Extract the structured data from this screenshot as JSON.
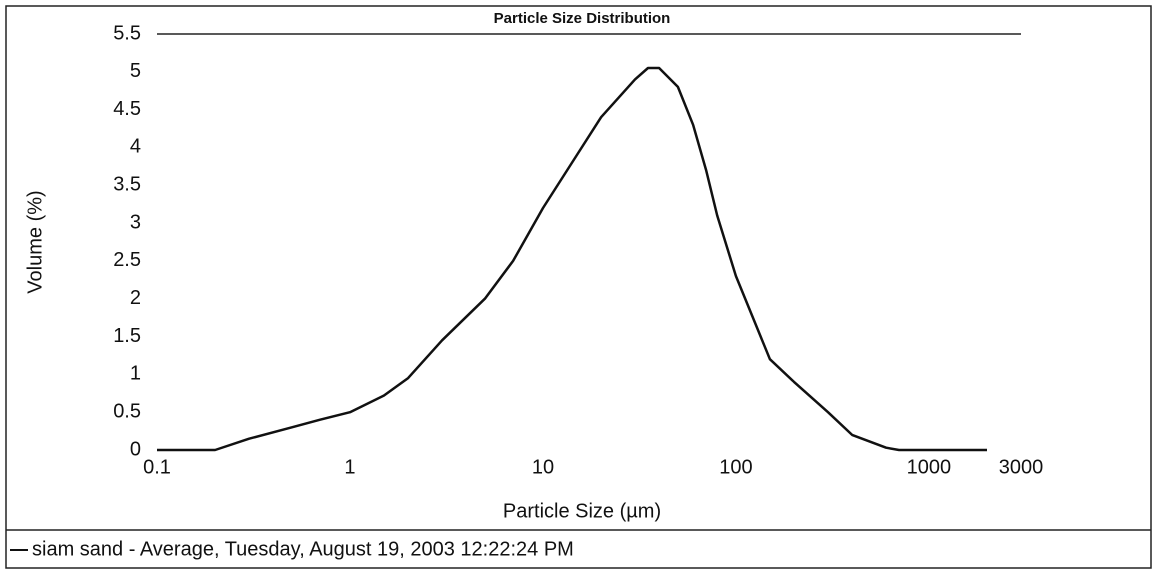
{
  "chart_data": {
    "type": "line",
    "title": "Particle Size Distribution",
    "x_label": "Particle Size (µm)",
    "y_label": "Volume (%)",
    "log_x": true,
    "xlim": [
      0.1,
      3000
    ],
    "xticks": [
      0.1,
      1,
      10,
      100,
      1000,
      3000
    ],
    "ylim": [
      0,
      5.5
    ],
    "yticks": [
      0,
      0.5,
      1,
      1.5,
      2,
      2.5,
      3,
      3.5,
      4,
      4.5,
      5,
      5.5
    ],
    "grid": false,
    "legend": "bottom",
    "x": [
      0.1,
      0.2,
      0.3,
      0.5,
      0.7,
      1,
      1.5,
      2,
      3,
      5,
      7,
      10,
      15,
      20,
      30,
      35,
      40,
      50,
      60,
      70,
      80,
      100,
      150,
      200,
      300,
      400,
      600,
      700,
      1000,
      2000
    ],
    "series": [
      {
        "name": "siam sand - Average, Tuesday, August 19, 2003 12:22:24 PM",
        "color": "#111111",
        "values": [
          0,
          0,
          0.15,
          0.3,
          0.4,
          0.5,
          0.72,
          0.95,
          1.45,
          2.0,
          2.5,
          3.2,
          3.9,
          4.4,
          4.9,
          5.05,
          5.05,
          4.8,
          4.3,
          3.7,
          3.1,
          2.3,
          1.2,
          0.9,
          0.5,
          0.2,
          0.03,
          0,
          0,
          0
        ]
      }
    ]
  }
}
